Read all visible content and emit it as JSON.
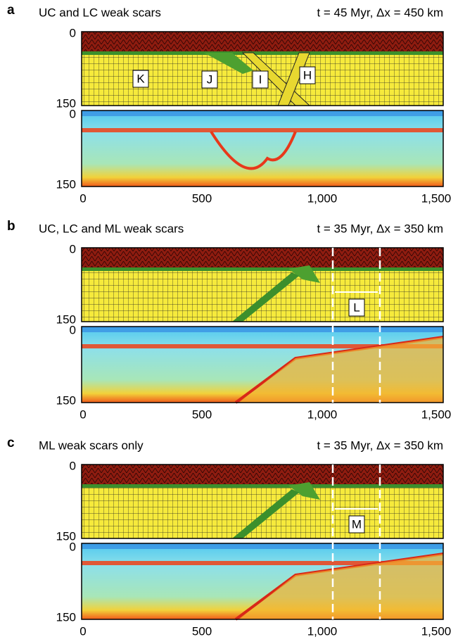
{
  "axes": {
    "x_ticks": [
      "0",
      "500",
      "1,000",
      "1,500"
    ],
    "y_ticks": [
      "0",
      "150"
    ]
  },
  "panels": [
    {
      "letter": "a",
      "title": "UC and LC weak scars",
      "time": "t = 45 Myr, Δx = 450 km",
      "labels": [
        "K",
        "J",
        "I",
        "H"
      ]
    },
    {
      "letter": "b",
      "title": "UC, LC and ML weak scars",
      "time": "t = 35 Myr, Δx = 350 km",
      "labels": [
        "L"
      ]
    },
    {
      "letter": "c",
      "title": "ML weak scars only",
      "time": "t = 35 Myr, Δx = 350 km",
      "labels": [
        "M"
      ]
    }
  ]
}
